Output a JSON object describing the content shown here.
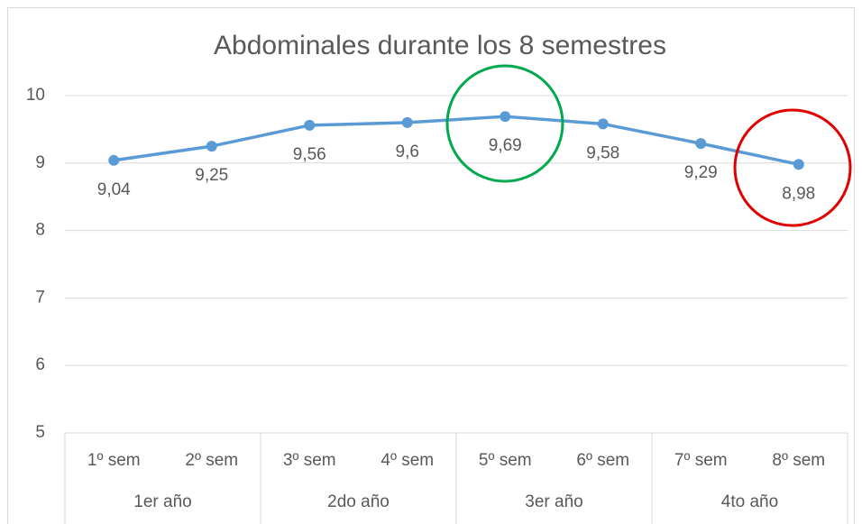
{
  "chart_data": {
    "type": "line",
    "title": "Abdominales durante los 8 semestres",
    "categories": [
      "1º sem",
      "2º sem",
      "3º sem",
      "4º sem",
      "5º sem",
      "6º sem",
      "7º sem",
      "8º sem"
    ],
    "groups": [
      "1er año",
      "2do año",
      "3er año",
      "4to año"
    ],
    "values": [
      9.04,
      9.25,
      9.56,
      9.6,
      9.69,
      9.58,
      9.29,
      8.98
    ],
    "value_labels": [
      "9,04",
      "9,25",
      "9,56",
      "9,6",
      "9,69",
      "9,58",
      "9,29",
      "8,98"
    ],
    "color": "#5b9bd5",
    "ylim": [
      5,
      10
    ],
    "yticks": [
      5,
      6,
      7,
      8,
      9,
      10
    ],
    "grid": true
  }
}
